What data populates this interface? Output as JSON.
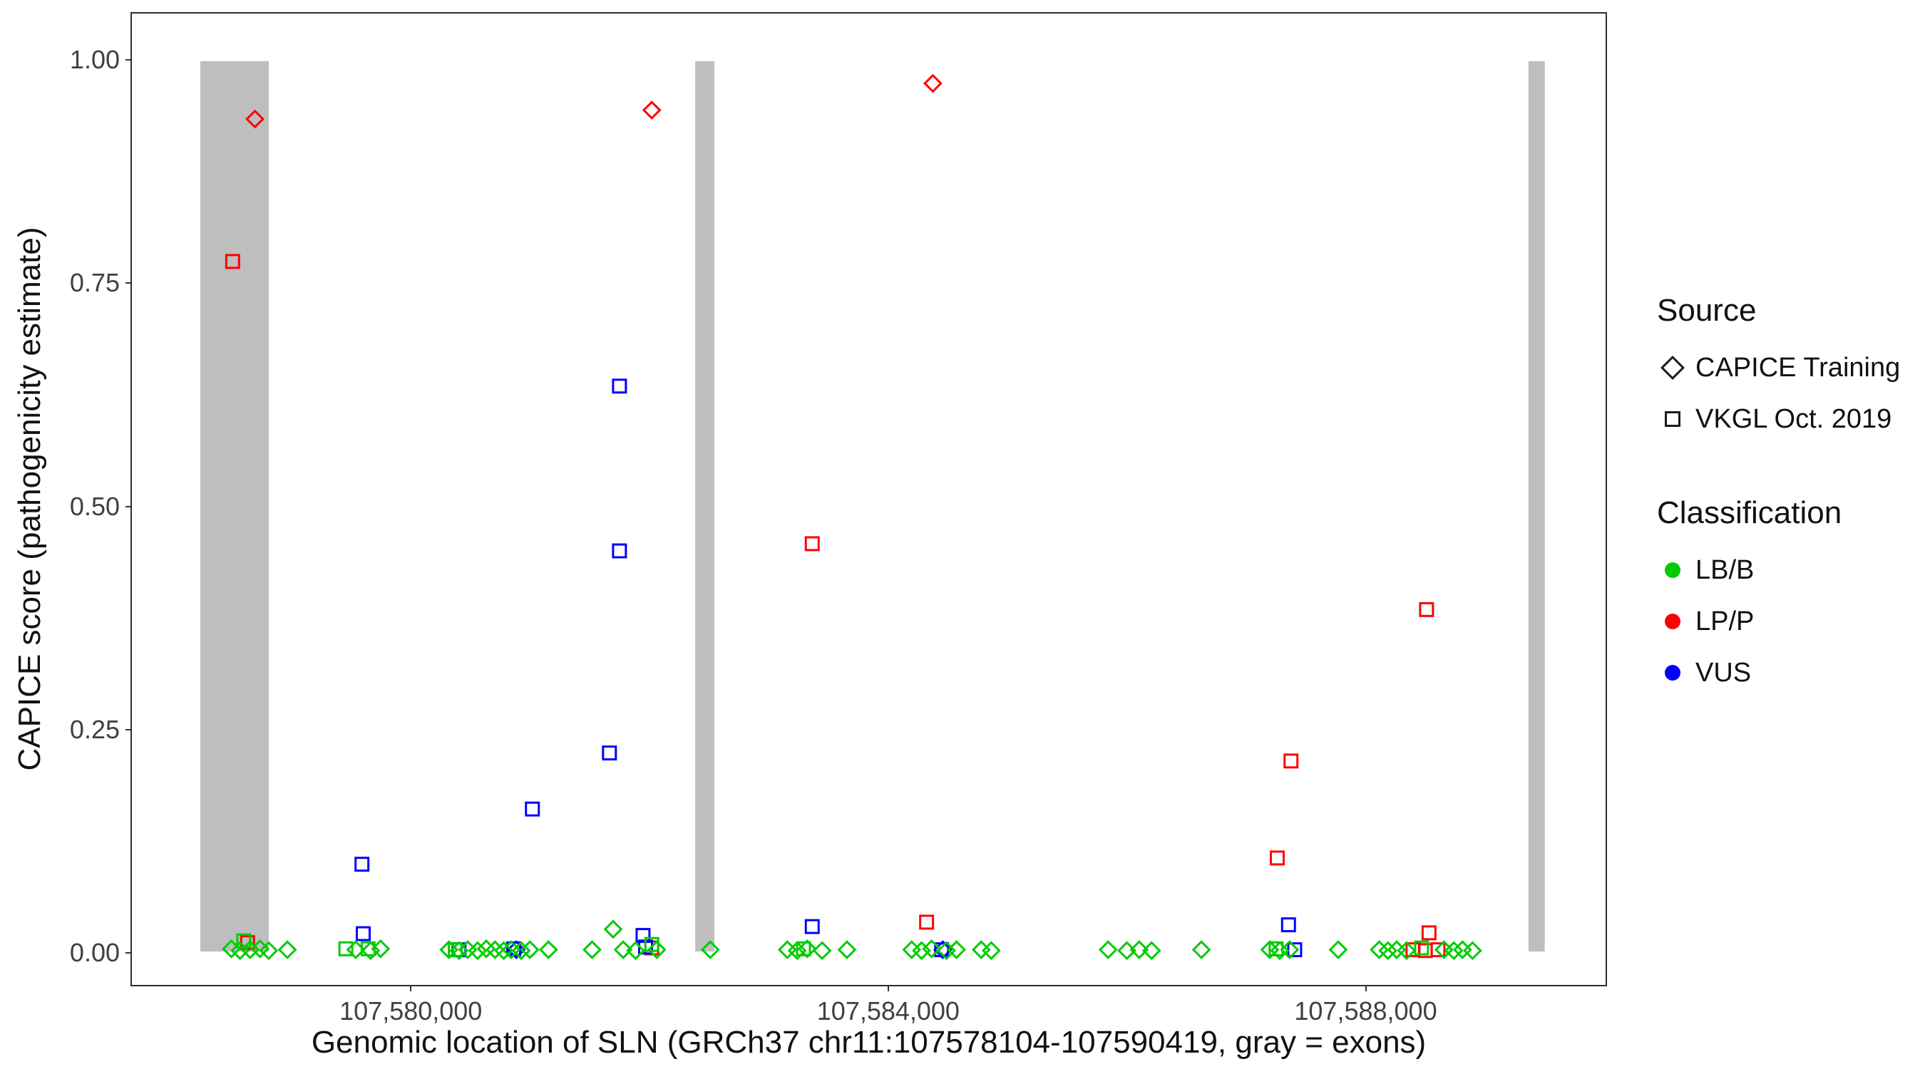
{
  "chart_data": {
    "type": "scatter",
    "title": "",
    "xlabel": "Genomic location of SLN (GRCh37 chr11:107578104-107590419, gray = exons)",
    "ylabel": "CAPICE score (pathogenicity estimate)",
    "xlim": [
      107577651,
      107590022
    ],
    "ylim": [
      0,
      1
    ],
    "grid": "off",
    "x_ticks": [
      {
        "value": 107580000,
        "label": "107,580,000"
      },
      {
        "value": 107584000,
        "label": "107,584,000"
      },
      {
        "value": 107588000,
        "label": "107,588,000"
      }
    ],
    "y_ticks": [
      {
        "value": 1.0,
        "label": "1.00"
      },
      {
        "value": 0.75,
        "label": "0.75"
      },
      {
        "value": 0.5,
        "label": "0.50"
      },
      {
        "value": 0.25,
        "label": "0.25"
      },
      {
        "value": 0.0,
        "label": "0.00"
      }
    ],
    "exon_regions": [
      [
        107578225,
        107578800
      ],
      [
        107582380,
        107582540
      ],
      [
        107589375,
        107589511
      ]
    ],
    "colors": {
      "LB/B": "#00cc00",
      "LP/P": "#ff0000",
      "VUS": "#0000ff",
      "exon": "#bebebe"
    },
    "legend": {
      "source": {
        "title": "Source",
        "items": [
          {
            "label": "CAPICE Training",
            "shape": "diamond"
          },
          {
            "label": "VKGL Oct. 2019",
            "shape": "square"
          }
        ]
      },
      "classification": {
        "title": "Classification",
        "items": [
          {
            "label": "LB/B"
          },
          {
            "label": "LP/P"
          },
          {
            "label": "VUS"
          }
        ]
      }
    },
    "points_format": [
      "genomic_position",
      "capice_score",
      "source (training=diamond, vkgl=square)",
      "classification"
    ],
    "points": [
      [
        107578684,
        0.935,
        "training",
        "LP/P"
      ],
      [
        107582015,
        0.945,
        "training",
        "LP/P"
      ],
      [
        107584375,
        0.975,
        "training",
        "LP/P"
      ],
      [
        107578497,
        0.775,
        "vkgl",
        "LP/P"
      ],
      [
        107583362,
        0.458,
        "vkgl",
        "LP/P"
      ],
      [
        107588519,
        0.384,
        "vkgl",
        "LP/P"
      ],
      [
        107587381,
        0.214,
        "vkgl",
        "LP/P"
      ],
      [
        107587266,
        0.105,
        "vkgl",
        "LP/P"
      ],
      [
        107584322,
        0.033,
        "vkgl",
        "LP/P"
      ],
      [
        107588540,
        0.021,
        "vkgl",
        "LP/P"
      ],
      [
        107578622,
        0.01,
        "vkgl",
        "LP/P"
      ],
      [
        107582015,
        0.004,
        "vkgl",
        "LP/P"
      ],
      [
        107588405,
        0.002,
        "vkgl",
        "LP/P"
      ],
      [
        107588615,
        0.002,
        "vkgl",
        "LP/P"
      ],
      [
        107588509,
        0.001,
        "vkgl",
        "LP/P"
      ],
      [
        107581744,
        0.635,
        "vkgl",
        "VUS"
      ],
      [
        107581744,
        0.45,
        "vkgl",
        "VUS"
      ],
      [
        107581660,
        0.223,
        "vkgl",
        "VUS"
      ],
      [
        107581013,
        0.16,
        "vkgl",
        "VUS"
      ],
      [
        107579582,
        0.098,
        "vkgl",
        "VUS"
      ],
      [
        107579593,
        0.02,
        "vkgl",
        "VUS"
      ],
      [
        107583362,
        0.028,
        "vkgl",
        "VUS"
      ],
      [
        107587360,
        0.03,
        "vkgl",
        "VUS"
      ],
      [
        107581942,
        0.018,
        "vkgl",
        "VUS"
      ],
      [
        107581963,
        0.005,
        "vkgl",
        "VUS"
      ],
      [
        107580397,
        0.002,
        "vkgl",
        "VUS"
      ],
      [
        107580856,
        0.003,
        "vkgl",
        "VUS"
      ],
      [
        107584448,
        0.002,
        "vkgl",
        "VUS"
      ],
      [
        107587412,
        0.002,
        "vkgl",
        "VUS"
      ],
      [
        107584458,
        0.002,
        "training",
        "VUS"
      ],
      [
        107580877,
        0.002,
        "training",
        "VUS"
      ],
      [
        107578590,
        0.012,
        "vkgl",
        "LB/B"
      ],
      [
        107579447,
        0.003,
        "vkgl",
        "LB/B"
      ],
      [
        107579634,
        0.003,
        "vkgl",
        "LB/B"
      ],
      [
        107580366,
        0.002,
        "vkgl",
        "LB/B"
      ],
      [
        107582015,
        0.008,
        "vkgl",
        "LB/B"
      ],
      [
        107583289,
        0.003,
        "vkgl",
        "LB/B"
      ],
      [
        107587256,
        0.003,
        "vkgl",
        "LB/B"
      ],
      [
        107588477,
        0.004,
        "vkgl",
        "LB/B"
      ],
      [
        107578486,
        0.003,
        "training",
        "LB/B"
      ],
      [
        107578559,
        0.001,
        "training",
        "LB/B"
      ],
      [
        107578643,
        0.002,
        "training",
        "LB/B"
      ],
      [
        107578726,
        0.003,
        "training",
        "LB/B"
      ],
      [
        107578799,
        0.001,
        "training",
        "LB/B"
      ],
      [
        107578956,
        0.002,
        "training",
        "LB/B"
      ],
      [
        107579530,
        0.002,
        "training",
        "LB/B"
      ],
      [
        107579655,
        0.001,
        "training",
        "LB/B"
      ],
      [
        107579739,
        0.003,
        "training",
        "LB/B"
      ],
      [
        107580313,
        0.002,
        "training",
        "LB/B"
      ],
      [
        107580397,
        0.001,
        "training",
        "LB/B"
      ],
      [
        107580470,
        0.002,
        "training",
        "LB/B"
      ],
      [
        107580553,
        0.001,
        "training",
        "LB/B"
      ],
      [
        107580626,
        0.003,
        "training",
        "LB/B"
      ],
      [
        107580699,
        0.002,
        "training",
        "LB/B"
      ],
      [
        107580773,
        0.001,
        "training",
        "LB/B"
      ],
      [
        107580835,
        0.002,
        "training",
        "LB/B"
      ],
      [
        107580919,
        0.001,
        "training",
        "LB/B"
      ],
      [
        107580992,
        0.002,
        "training",
        "LB/B"
      ],
      [
        107581148,
        0.002,
        "training",
        "LB/B"
      ],
      [
        107581514,
        0.002,
        "training",
        "LB/B"
      ],
      [
        107581691,
        0.025,
        "training",
        "LB/B"
      ],
      [
        107581775,
        0.002,
        "training",
        "LB/B"
      ],
      [
        107581879,
        0.001,
        "training",
        "LB/B"
      ],
      [
        107582057,
        0.002,
        "training",
        "LB/B"
      ],
      [
        107582506,
        0.002,
        "training",
        "LB/B"
      ],
      [
        107583153,
        0.002,
        "training",
        "LB/B"
      ],
      [
        107583236,
        0.001,
        "training",
        "LB/B"
      ],
      [
        107583320,
        0.003,
        "training",
        "LB/B"
      ],
      [
        107583445,
        0.001,
        "training",
        "LB/B"
      ],
      [
        107583654,
        0.002,
        "training",
        "LB/B"
      ],
      [
        107584197,
        0.002,
        "training",
        "LB/B"
      ],
      [
        107584280,
        0.001,
        "training",
        "LB/B"
      ],
      [
        107584364,
        0.003,
        "training",
        "LB/B"
      ],
      [
        107584489,
        0.001,
        "training",
        "LB/B"
      ],
      [
        107584573,
        0.002,
        "training",
        "LB/B"
      ],
      [
        107584781,
        0.002,
        "training",
        "LB/B"
      ],
      [
        107584865,
        0.001,
        "training",
        "LB/B"
      ],
      [
        107585846,
        0.002,
        "training",
        "LB/B"
      ],
      [
        107586003,
        0.001,
        "training",
        "LB/B"
      ],
      [
        107586107,
        0.002,
        "training",
        "LB/B"
      ],
      [
        107586211,
        0.001,
        "training",
        "LB/B"
      ],
      [
        107586629,
        0.002,
        "training",
        "LB/B"
      ],
      [
        107587203,
        0.002,
        "training",
        "LB/B"
      ],
      [
        107587287,
        0.001,
        "training",
        "LB/B"
      ],
      [
        107587370,
        0.002,
        "training",
        "LB/B"
      ],
      [
        107587777,
        0.002,
        "training",
        "LB/B"
      ],
      [
        107588122,
        0.002,
        "training",
        "LB/B"
      ],
      [
        107588195,
        0.001,
        "training",
        "LB/B"
      ],
      [
        107588268,
        0.002,
        "training",
        "LB/B"
      ],
      [
        107588351,
        0.001,
        "training",
        "LB/B"
      ],
      [
        107588665,
        0.002,
        "training",
        "LB/B"
      ],
      [
        107588748,
        0.001,
        "training",
        "LB/B"
      ],
      [
        107588821,
        0.002,
        "training",
        "LB/B"
      ],
      [
        107588905,
        0.001,
        "training",
        "LB/B"
      ]
    ]
  }
}
